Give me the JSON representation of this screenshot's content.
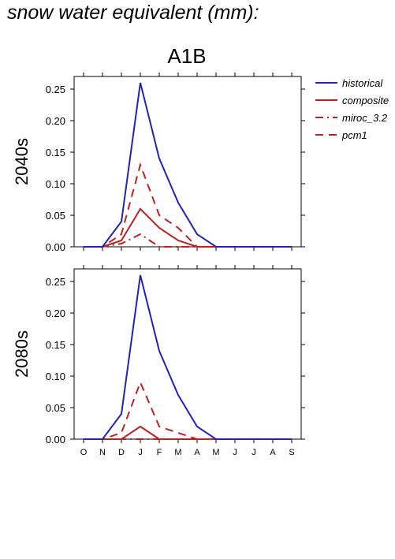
{
  "title": "snow water equivalent (mm):",
  "chart_data": {
    "type": "line",
    "scenario": "A1B",
    "x": [
      "O",
      "N",
      "D",
      "J",
      "F",
      "M",
      "A",
      "M",
      "J",
      "J",
      "A",
      "S"
    ],
    "ylim": [
      0,
      0.27
    ],
    "yticks": [
      "0.00",
      "0.05",
      "0.10",
      "0.15",
      "0.20",
      "0.25"
    ],
    "colors": {
      "historical": "#2222bb",
      "scenario": "#c02020"
    },
    "legend": [
      {
        "name": "historical",
        "style": "solid",
        "color": "#2222bb"
      },
      {
        "name": "composite",
        "style": "solid",
        "color": "#c02020"
      },
      {
        "name": "miroc_3.2",
        "style": "dashdot",
        "color": "#c02020"
      },
      {
        "name": "pcm1",
        "style": "dash",
        "color": "#c02020"
      }
    ],
    "legend_placement": "right",
    "panels": [
      {
        "label": "2040s",
        "series": [
          {
            "name": "historical",
            "values": [
              0,
              0,
              0.04,
              0.26,
              0.14,
              0.07,
              0.02,
              0,
              0,
              0,
              0,
              0
            ]
          },
          {
            "name": "composite",
            "values": [
              0,
              0,
              0.01,
              0.06,
              0.03,
              0.01,
              0,
              0,
              0,
              0,
              0,
              0
            ]
          },
          {
            "name": "miroc_3.2",
            "values": [
              0,
              0,
              0.005,
              0.02,
              0,
              0,
              0,
              0,
              0,
              0,
              0,
              0
            ]
          },
          {
            "name": "pcm1",
            "values": [
              0,
              0,
              0.02,
              0.13,
              0.05,
              0.03,
              0,
              0,
              0,
              0,
              0,
              0
            ]
          }
        ]
      },
      {
        "label": "2080s",
        "series": [
          {
            "name": "historical",
            "values": [
              0,
              0,
              0.04,
              0.26,
              0.14,
              0.07,
              0.02,
              0,
              0,
              0,
              0,
              0
            ]
          },
          {
            "name": "composite",
            "values": [
              0,
              0,
              0,
              0.02,
              0,
              0,
              0,
              0,
              0,
              0,
              0,
              0
            ]
          },
          {
            "name": "miroc_3.2",
            "values": [
              0,
              0,
              0,
              0,
              0,
              0,
              0,
              0,
              0,
              0,
              0,
              0
            ]
          },
          {
            "name": "pcm1",
            "values": [
              0,
              0,
              0.01,
              0.09,
              0.02,
              0.01,
              0,
              0,
              0,
              0,
              0,
              0
            ]
          }
        ]
      }
    ]
  }
}
